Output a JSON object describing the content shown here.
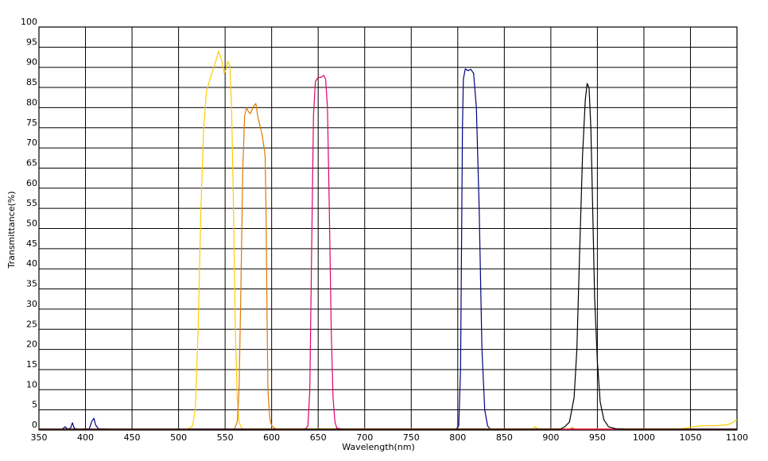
{
  "chart_data": {
    "type": "line",
    "title": "",
    "xlabel": "Wavelength(nm)",
    "ylabel": "Transmittance(%)",
    "xlim": [
      350,
      1100
    ],
    "ylim": [
      0,
      100
    ],
    "xticks": [
      350,
      400,
      450,
      500,
      550,
      600,
      650,
      700,
      750,
      800,
      850,
      900,
      950,
      1000,
      1050,
      1100
    ],
    "yticks": [
      0,
      5,
      10,
      15,
      20,
      25,
      30,
      35,
      40,
      45,
      50,
      55,
      60,
      65,
      70,
      75,
      80,
      85,
      90,
      95,
      100
    ],
    "grid": true,
    "legend": "none",
    "series": [
      {
        "color": "#000080",
        "points": [
          [
            350,
            0.2
          ],
          [
            375,
            0.2
          ],
          [
            378,
            0.8
          ],
          [
            381,
            0.2
          ],
          [
            384,
            0.5
          ],
          [
            386,
            1.8
          ],
          [
            388,
            0.4
          ],
          [
            392,
            0.2
          ],
          [
            404,
            0.3
          ],
          [
            407,
            2.2
          ],
          [
            409,
            2.9
          ],
          [
            411,
            1.2
          ],
          [
            414,
            0.3
          ],
          [
            430,
            0.2
          ],
          [
            798,
            0.2
          ],
          [
            801,
            1
          ],
          [
            803,
            15
          ],
          [
            805,
            75
          ],
          [
            806,
            87
          ],
          [
            808,
            89.6
          ],
          [
            811,
            89.2
          ],
          [
            814,
            89.5
          ],
          [
            817,
            88.5
          ],
          [
            820,
            80
          ],
          [
            823,
            55
          ],
          [
            826,
            20
          ],
          [
            829,
            5
          ],
          [
            832,
            1
          ],
          [
            835,
            0.2
          ],
          [
            1100,
            0.2
          ]
        ]
      },
      {
        "color": "#ffcc00",
        "points": [
          [
            350,
            0.2
          ],
          [
            510,
            0.2
          ],
          [
            515,
            1
          ],
          [
            518,
            5
          ],
          [
            521,
            25
          ],
          [
            524,
            55
          ],
          [
            527,
            75
          ],
          [
            530,
            84
          ],
          [
            535,
            88
          ],
          [
            540,
            91.5
          ],
          [
            543,
            94
          ],
          [
            546,
            92
          ],
          [
            549,
            88.5
          ],
          [
            551,
            89.5
          ],
          [
            553,
            91.5
          ],
          [
            555,
            90.5
          ],
          [
            557,
            80
          ],
          [
            559,
            55
          ],
          [
            561,
            25
          ],
          [
            563,
            8
          ],
          [
            565,
            2
          ],
          [
            568,
            0.3
          ],
          [
            880,
            0.3
          ],
          [
            883,
            0.8
          ],
          [
            886,
            0.3
          ],
          [
            1040,
            0.3
          ],
          [
            1050,
            0.7
          ],
          [
            1060,
            1
          ],
          [
            1080,
            1.1
          ],
          [
            1090,
            1.3
          ],
          [
            1095,
            1.8
          ],
          [
            1098,
            2.3
          ],
          [
            1100,
            2.5
          ]
        ]
      },
      {
        "color": "#e07800",
        "points": [
          [
            350,
            0.2
          ],
          [
            560,
            0.2
          ],
          [
            563,
            2
          ],
          [
            565,
            10
          ],
          [
            567,
            35
          ],
          [
            569,
            65
          ],
          [
            571,
            78
          ],
          [
            573,
            80
          ],
          [
            575,
            79
          ],
          [
            577,
            78.5
          ],
          [
            579,
            79.5
          ],
          [
            581,
            80.5
          ],
          [
            583,
            81
          ],
          [
            585,
            78
          ],
          [
            587,
            76
          ],
          [
            590,
            73
          ],
          [
            593,
            68
          ],
          [
            594,
            55
          ],
          [
            595,
            30
          ],
          [
            596,
            10
          ],
          [
            598,
            3
          ],
          [
            600,
            1
          ],
          [
            605,
            0.2
          ],
          [
            920,
            0.2
          ],
          [
            923,
            0.6
          ],
          [
            926,
            0.2
          ],
          [
            1100,
            0.2
          ]
        ]
      },
      {
        "color": "#e0006a",
        "points": [
          [
            350,
            0.2
          ],
          [
            636,
            0.2
          ],
          [
            639,
            1
          ],
          [
            641,
            10
          ],
          [
            643,
            45
          ],
          [
            645,
            78
          ],
          [
            647,
            86.5
          ],
          [
            650,
            87.5
          ],
          [
            653,
            87.5
          ],
          [
            656,
            88
          ],
          [
            658,
            87
          ],
          [
            660,
            80
          ],
          [
            662,
            55
          ],
          [
            664,
            25
          ],
          [
            666,
            8
          ],
          [
            668,
            2
          ],
          [
            670,
            0.5
          ],
          [
            675,
            0.2
          ],
          [
            1100,
            0.2
          ]
        ]
      },
      {
        "color": "#000000",
        "points": [
          [
            350,
            0.2
          ],
          [
            910,
            0.2
          ],
          [
            915,
            0.8
          ],
          [
            920,
            2
          ],
          [
            925,
            8
          ],
          [
            928,
            20
          ],
          [
            931,
            45
          ],
          [
            934,
            68
          ],
          [
            937,
            82
          ],
          [
            939,
            86
          ],
          [
            941,
            85
          ],
          [
            943,
            75
          ],
          [
            945,
            55
          ],
          [
            947,
            33
          ],
          [
            950,
            17
          ],
          [
            953,
            7
          ],
          [
            957,
            2.5
          ],
          [
            962,
            0.8
          ],
          [
            970,
            0.3
          ],
          [
            980,
            0.2
          ],
          [
            1100,
            0.2
          ]
        ]
      }
    ]
  }
}
